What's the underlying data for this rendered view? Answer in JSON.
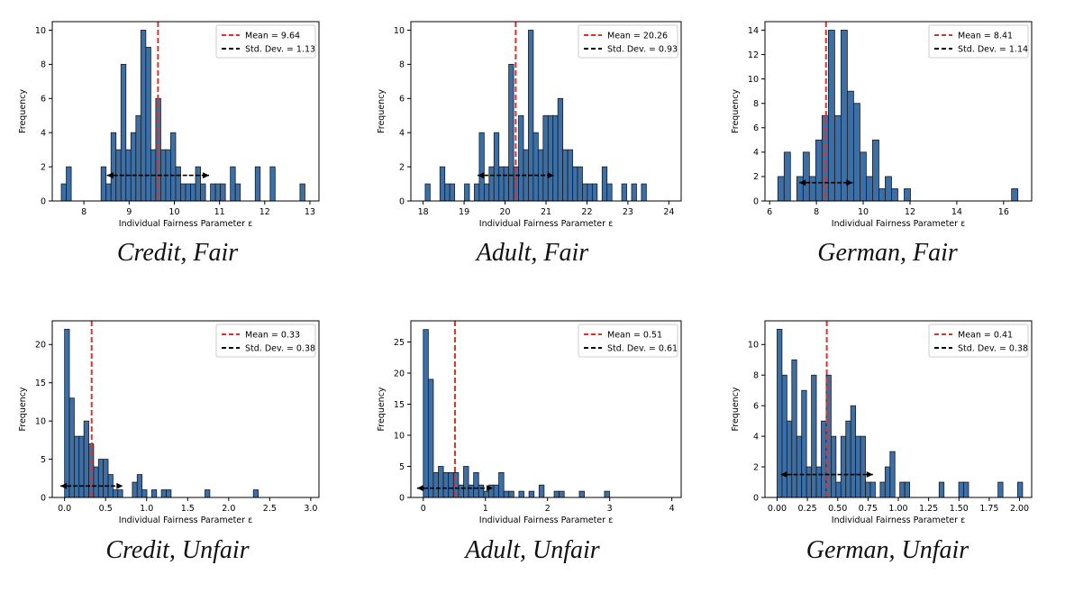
{
  "chart_data": [
    {
      "type": "bar",
      "caption": "Credit, Fair",
      "xlabel": "Individual Fairness Parameter ε",
      "ylabel": "Frequency",
      "xlim": [
        7.3,
        13.2
      ],
      "ylim": [
        0,
        10.5
      ],
      "xticks": [
        "8",
        "9",
        "10",
        "11",
        "12",
        "13"
      ],
      "xtick_values": [
        8,
        9,
        10,
        11,
        12,
        13
      ],
      "yticks": [
        "0",
        "2",
        "4",
        "6",
        "8",
        "10"
      ],
      "ytick_values": [
        0,
        2,
        4,
        6,
        8,
        10
      ],
      "bin_start": 7.5,
      "bin_width": 0.11,
      "counts": [
        1,
        2,
        0,
        0,
        0,
        0,
        0,
        0,
        2,
        1,
        4,
        3,
        8,
        3,
        4,
        5,
        10,
        9,
        3,
        6,
        3,
        3,
        4,
        2,
        1,
        1,
        1,
        2,
        1,
        0,
        1,
        1,
        1,
        0,
        2,
        1,
        0,
        0,
        0,
        2,
        0,
        0,
        2,
        0,
        0,
        0,
        0,
        0,
        1
      ],
      "mean": 9.64,
      "std": 1.13,
      "legend": {
        "mean_label": "Mean = 9.64",
        "std_label": "Std. Dev. = 1.13"
      },
      "colors": {
        "bar": "#3b6fa6",
        "mean_line": "#e0302a",
        "std_line": "#000000"
      }
    },
    {
      "type": "bar",
      "caption": "Adult, Fair",
      "xlabel": "Individual Fairness Parameter ε",
      "ylabel": "Frequency",
      "xlim": [
        17.7,
        24.3
      ],
      "ylim": [
        0,
        10.5
      ],
      "xticks": [
        "18",
        "19",
        "20",
        "21",
        "22",
        "23",
        "24"
      ],
      "xtick_values": [
        18,
        19,
        20,
        21,
        22,
        23,
        24
      ],
      "yticks": [
        "0",
        "2",
        "4",
        "6",
        "8",
        "10"
      ],
      "ytick_values": [
        0,
        2,
        4,
        6,
        8,
        10
      ],
      "bin_start": 18.05,
      "bin_width": 0.12,
      "counts": [
        1,
        0,
        0,
        2,
        1,
        1,
        0,
        0,
        1,
        0,
        1,
        4,
        1,
        2,
        4,
        2,
        2,
        8,
        2,
        5,
        3,
        10,
        4,
        3,
        5,
        5,
        5,
        6,
        3,
        3,
        2,
        2,
        1,
        1,
        1,
        0,
        2,
        1,
        0,
        0,
        1,
        0,
        1,
        0,
        1
      ],
      "mean": 20.26,
      "std": 0.93,
      "legend": {
        "mean_label": "Mean = 20.26",
        "std_label": "Std. Dev. = 0.93"
      },
      "colors": {
        "bar": "#3b6fa6",
        "mean_line": "#e0302a",
        "std_line": "#000000"
      }
    },
    {
      "type": "bar",
      "caption": "German, Fair",
      "xlabel": "Individual Fairness Parameter ε",
      "ylabel": "Frequency",
      "xlim": [
        5.8,
        17.2
      ],
      "ylim": [
        0,
        14.7
      ],
      "xticks": [
        "6",
        "8",
        "10",
        "12",
        "14",
        "16"
      ],
      "xtick_values": [
        6,
        8,
        10,
        12,
        14,
        16
      ],
      "yticks": [
        "0",
        "2",
        "4",
        "6",
        "8",
        "10",
        "12",
        "14"
      ],
      "ytick_values": [
        0,
        2,
        4,
        6,
        8,
        10,
        12,
        14
      ],
      "bin_start": 6.35,
      "bin_width": 0.27,
      "counts": [
        2,
        4,
        0,
        2,
        4,
        2,
        5,
        7,
        14,
        7,
        14,
        9,
        8,
        4,
        2,
        5,
        1,
        2,
        1,
        0,
        1,
        0,
        0,
        0,
        0,
        0,
        0,
        0,
        0,
        0,
        0,
        0,
        0,
        0,
        0,
        0,
        0,
        1
      ],
      "mean": 8.41,
      "std": 1.14,
      "legend": {
        "mean_label": "Mean = 8.41",
        "std_label": "Std. Dev. = 1.14"
      },
      "colors": {
        "bar": "#3b6fa6",
        "mean_line": "#e0302a",
        "std_line": "#000000"
      }
    },
    {
      "type": "bar",
      "caption": "Credit, Unfair",
      "xlabel": "Individual Fairness Parameter ε",
      "ylabel": "Frequency",
      "xlim": [
        -0.15,
        3.1
      ],
      "ylim": [
        0,
        23.1
      ],
      "xticks": [
        "0.0",
        "0.5",
        "1.0",
        "1.5",
        "2.0",
        "2.5",
        "3.0"
      ],
      "xtick_values": [
        0,
        0.5,
        1.0,
        1.5,
        2.0,
        2.5,
        3.0
      ],
      "yticks": [
        "0",
        "5",
        "10",
        "15",
        "20"
      ],
      "ytick_values": [
        0,
        5,
        10,
        15,
        20
      ],
      "bin_start": 0.0,
      "bin_width": 0.059,
      "counts": [
        22,
        13,
        8,
        8,
        10,
        7,
        4,
        5,
        5,
        3,
        1,
        1,
        0,
        0,
        2,
        3,
        1,
        0,
        1,
        0,
        1,
        1,
        0,
        0,
        0,
        0,
        0,
        0,
        0,
        1,
        0,
        0,
        0,
        0,
        0,
        0,
        0,
        0,
        0,
        1
      ],
      "mean": 0.33,
      "std": 0.38,
      "legend": {
        "mean_label": "Mean = 0.33",
        "std_label": "Std. Dev. = 0.38"
      },
      "colors": {
        "bar": "#3b6fa6",
        "mean_line": "#e0302a",
        "std_line": "#000000"
      }
    },
    {
      "type": "bar",
      "caption": "Adult, Unfair",
      "xlabel": "Individual Fairness Parameter ε",
      "ylabel": "Frequency",
      "xlim": [
        -0.2,
        4.15
      ],
      "ylim": [
        0,
        28.4
      ],
      "xticks": [
        "0",
        "1",
        "2",
        "3",
        "4"
      ],
      "xtick_values": [
        0,
        1,
        2,
        3,
        4
      ],
      "yticks": [
        "0",
        "5",
        "10",
        "15",
        "20",
        "25"
      ],
      "ytick_values": [
        0,
        5,
        10,
        15,
        20,
        25
      ],
      "bin_start": 0.0,
      "bin_width": 0.081,
      "counts": [
        27,
        19,
        4,
        5,
        4,
        4,
        4,
        2,
        5,
        2,
        4,
        2,
        1,
        2,
        2,
        4,
        1,
        1,
        0,
        1,
        0,
        1,
        0,
        2,
        0,
        0,
        1,
        1,
        0,
        0,
        0,
        1,
        0,
        0,
        0,
        0,
        1
      ],
      "mean": 0.51,
      "std": 0.61,
      "legend": {
        "mean_label": "Mean = 0.51",
        "std_label": "Std. Dev. = 0.61"
      },
      "colors": {
        "bar": "#3b6fa6",
        "mean_line": "#e0302a",
        "std_line": "#000000"
      }
    },
    {
      "type": "bar",
      "caption": "German, Unfair",
      "xlabel": "Individual Fairness Parameter ε",
      "ylabel": "Frequency",
      "xlim": [
        -0.1,
        2.1
      ],
      "ylim": [
        0,
        11.55
      ],
      "xticks": [
        "0.00",
        "0.25",
        "0.50",
        "0.75",
        "1.00",
        "1.25",
        "1.50",
        "1.75",
        "2.00"
      ],
      "xtick_values": [
        0,
        0.25,
        0.5,
        0.75,
        1.0,
        1.25,
        1.5,
        1.75,
        2.0
      ],
      "yticks": [
        "0",
        "2",
        "4",
        "6",
        "8",
        "10"
      ],
      "ytick_values": [
        0,
        2,
        4,
        6,
        8,
        10
      ],
      "bin_start": 0.0,
      "bin_width": 0.0405,
      "counts": [
        11,
        8,
        5,
        9,
        4,
        7,
        2,
        8,
        2,
        5,
        8,
        4,
        1,
        4,
        5,
        6,
        4,
        4,
        1,
        1,
        0,
        1,
        2,
        3,
        0,
        1,
        1,
        0,
        0,
        0,
        0,
        0,
        0,
        1,
        0,
        0,
        0,
        1,
        1,
        0,
        0,
        0,
        0,
        0,
        0,
        1,
        0,
        0,
        0,
        1
      ],
      "mean": 0.41,
      "std": 0.38,
      "legend": {
        "mean_label": "Mean = 0.41",
        "std_label": "Std. Dev. = 0.38"
      },
      "colors": {
        "bar": "#3b6fa6",
        "mean_line": "#e0302a",
        "std_line": "#000000"
      }
    }
  ]
}
